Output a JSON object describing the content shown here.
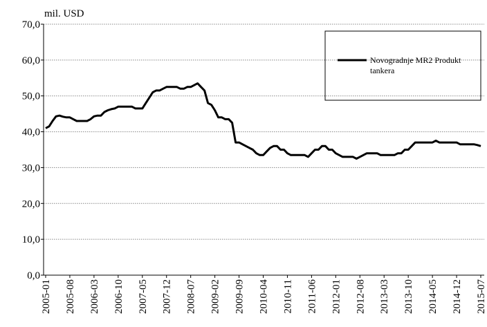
{
  "chart_data": {
    "type": "line",
    "y_label": "mil. USD",
    "categories": [
      "2005-01",
      null,
      null,
      null,
      null,
      null,
      null,
      "2005-08",
      null,
      null,
      null,
      null,
      null,
      null,
      "2006-03",
      null,
      null,
      null,
      null,
      null,
      null,
      "2006-10",
      null,
      null,
      null,
      null,
      null,
      null,
      "2007-05",
      null,
      null,
      null,
      null,
      null,
      null,
      "2007-12",
      null,
      null,
      null,
      null,
      null,
      null,
      "2008-07",
      null,
      null,
      null,
      null,
      null,
      null,
      "2009-02",
      null,
      null,
      null,
      null,
      null,
      null,
      "2009-09",
      null,
      null,
      null,
      null,
      null,
      null,
      "2010-04",
      null,
      null,
      null,
      null,
      null,
      null,
      "2010-11",
      null,
      null,
      null,
      null,
      null,
      null,
      "2011-06",
      null,
      null,
      null,
      null,
      null,
      null,
      "2012-01",
      null,
      null,
      null,
      null,
      null,
      null,
      "2012-08",
      null,
      null,
      null,
      null,
      null,
      null,
      "2013-03",
      null,
      null,
      null,
      null,
      null,
      null,
      "2013-10",
      null,
      null,
      null,
      null,
      null,
      null,
      "2014-05",
      null,
      null,
      null,
      null,
      null,
      null,
      "2014-12",
      null,
      null,
      null,
      null,
      null,
      null,
      "2015-07"
    ],
    "series": [
      {
        "name": "Novogradnje MR2 Produkt tankera",
        "color": "#000000",
        "values": [
          41,
          41.5,
          43,
          44.3,
          44.5,
          44.2,
          44,
          44,
          43.5,
          43,
          43,
          43,
          43,
          43.5,
          44.3,
          44.5,
          44.5,
          45.5,
          46,
          46.3,
          46.5,
          47,
          47,
          47,
          47,
          47,
          46.5,
          46.5,
          46.5,
          48,
          49.5,
          51,
          51.5,
          51.5,
          52,
          52.5,
          52.5,
          52.5,
          52.5,
          52,
          52,
          52.5,
          52.5,
          53,
          53.5,
          52.5,
          51.5,
          48,
          47.5,
          46,
          44,
          44,
          43.5,
          43.5,
          42.5,
          37,
          37,
          36.5,
          36,
          35.5,
          35,
          34,
          33.5,
          33.5,
          34.5,
          35.5,
          36,
          36,
          35,
          35,
          34,
          33.5,
          33.5,
          33.5,
          33.5,
          33.5,
          33,
          34,
          35,
          35,
          36,
          36,
          35,
          35,
          34,
          33.5,
          33,
          33,
          33,
          33,
          32.5,
          33,
          33.5,
          34,
          34,
          34,
          34,
          33.5,
          33.5,
          33.5,
          33.5,
          33.5,
          34,
          34,
          35,
          35,
          36,
          37,
          37,
          37,
          37,
          37,
          37,
          37.5,
          37,
          37,
          37,
          37,
          37,
          37,
          36.5,
          36.5,
          36.5,
          36.5,
          36.5,
          36.3,
          36
        ]
      }
    ],
    "ylim": [
      0,
      70
    ],
    "yticks": [
      {
        "value": 0,
        "label": "0,0"
      },
      {
        "value": 10,
        "label": "10,0"
      },
      {
        "value": 20,
        "label": "20,0"
      },
      {
        "value": 30,
        "label": "30,0"
      },
      {
        "value": 40,
        "label": "40,0"
      },
      {
        "value": 50,
        "label": "50,0"
      },
      {
        "value": 60,
        "label": "60,0"
      },
      {
        "value": 70,
        "label": "70,0"
      }
    ],
    "grid": true,
    "legend": "upper right"
  }
}
